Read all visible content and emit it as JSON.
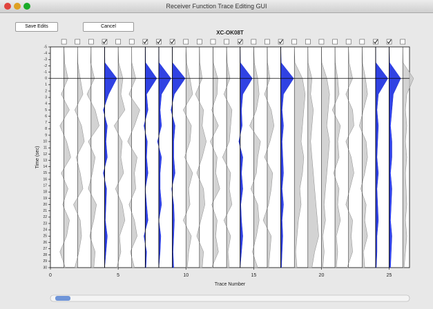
{
  "window": {
    "title": "Receiver Function Trace Editing GUI"
  },
  "buttons": [
    "Save Edits",
    "Cancel"
  ],
  "chart_data": {
    "type": "trace-section",
    "title": "XC-OK08T",
    "x_label": "Trace Number",
    "y_label": "Time (sec)",
    "xlim": [
      0,
      26.5
    ],
    "xticks": [
      0,
      5,
      10,
      15,
      20,
      25
    ],
    "ylim": [
      -5,
      30
    ],
    "yticks": [
      -5,
      -4,
      -3,
      -2,
      -1,
      0,
      1,
      2,
      3,
      4,
      5,
      6,
      7,
      8,
      9,
      10,
      11,
      12,
      13,
      14,
      15,
      16,
      17,
      18,
      19,
      20,
      21,
      22,
      23,
      24,
      25,
      26,
      27,
      28,
      29,
      30
    ],
    "checked_color": "#1a2ee0",
    "unchecked_color": "#c8c8c8",
    "times": [
      -5,
      -2.5,
      0,
      2.5,
      5,
      7.5,
      10,
      12.5,
      15,
      17.5,
      20,
      22.5,
      25,
      27.5,
      30
    ],
    "traces": [
      {
        "x": 1,
        "checked": false,
        "values": [
          0,
          0.05,
          0.3,
          -0.2,
          0.4,
          -0.3,
          0.2,
          0.5,
          -0.2,
          0.3,
          -0.1,
          0.4,
          0.2,
          -0.3,
          0.1
        ]
      },
      {
        "x": 2,
        "checked": false,
        "values": [
          0,
          0.02,
          0.2,
          0.4,
          -0.2,
          0.3,
          0.5,
          -0.1,
          0.2,
          0.4,
          -0.3,
          0.2,
          0.3,
          0.1,
          -0.2
        ]
      },
      {
        "x": 3,
        "checked": false,
        "values": [
          0,
          -0.03,
          0.25,
          -0.3,
          0.3,
          0.6,
          -0.2,
          0.3,
          0.1,
          -0.2,
          0.4,
          0.2,
          -0.1,
          0.3,
          0.2
        ]
      },
      {
        "x": 4,
        "checked": true,
        "values": [
          0,
          0.02,
          0.9,
          0.3,
          -0.1,
          0.2,
          0.1,
          0.2,
          -0.1,
          0.15,
          0.1,
          0.05,
          0.2,
          0.1,
          0
        ]
      },
      {
        "x": 5,
        "checked": false,
        "values": [
          0,
          0.04,
          0.35,
          0.2,
          0.5,
          -0.3,
          0.3,
          0.2,
          0.4,
          -0.2,
          0.3,
          0.5,
          0.1,
          0.2,
          -0.1
        ]
      },
      {
        "x": 6,
        "checked": false,
        "values": [
          0,
          0.01,
          0.3,
          -0.2,
          0.6,
          0.2,
          -0.3,
          0.4,
          0.2,
          0.3,
          -0.2,
          0.2,
          0.4,
          -0.1,
          0.2
        ]
      },
      {
        "x": 7,
        "checked": true,
        "values": [
          0,
          0.03,
          0.85,
          0.1,
          0.2,
          -0.1,
          0.15,
          0.1,
          0.2,
          0,
          0.1,
          0.2,
          -0.1,
          0.1,
          0.05
        ]
      },
      {
        "x": 8,
        "checked": true,
        "values": [
          0,
          0.02,
          0.9,
          0.2,
          0.1,
          0.2,
          -0.1,
          0.2,
          0.1,
          0.1,
          0.2,
          0,
          0.15,
          0.1,
          0
        ]
      },
      {
        "x": 9,
        "checked": true,
        "values": [
          0,
          0.01,
          0.95,
          0.15,
          -0.1,
          0.2,
          0.1,
          0.1,
          0.2,
          -0.05,
          0.1,
          0.15,
          0.1,
          0.05,
          0.1
        ]
      },
      {
        "x": 10,
        "checked": false,
        "values": [
          0,
          0.05,
          0.3,
          0.5,
          -0.2,
          0.4,
          0.3,
          -0.1,
          0.5,
          0.2,
          0.3,
          -0.2,
          0.4,
          0.2,
          0.1
        ]
      },
      {
        "x": 11,
        "checked": false,
        "values": [
          0,
          0.03,
          0.2,
          -0.3,
          0.3,
          0.2,
          0.5,
          0.2,
          -0.2,
          0.3,
          0.4,
          0.1,
          -0.2,
          0.3,
          0.2
        ]
      },
      {
        "x": 12,
        "checked": false,
        "values": [
          0,
          0.02,
          0.35,
          0.3,
          -0.1,
          0.4,
          -0.2,
          0.3,
          0.2,
          0.5,
          -0.1,
          0.3,
          0.2,
          0.4,
          -0.1
        ]
      },
      {
        "x": 13,
        "checked": false,
        "values": [
          0,
          0.04,
          0.25,
          -0.2,
          0.4,
          0.3,
          0.2,
          -0.3,
          0.3,
          0.2,
          0.4,
          -0.2,
          0.3,
          0.1,
          0.2
        ]
      },
      {
        "x": 14,
        "checked": true,
        "values": [
          0,
          0.02,
          0.9,
          0.2,
          0.1,
          0.15,
          -0.1,
          0.2,
          0.1,
          0.2,
          0.05,
          0.1,
          0.2,
          0.1,
          0
        ]
      },
      {
        "x": 15,
        "checked": false,
        "values": [
          0,
          0.05,
          0.3,
          0.4,
          0.2,
          -0.3,
          0.5,
          0.3,
          0.2,
          -0.2,
          0.3,
          0.4,
          0.2,
          -0.1,
          0.3
        ]
      },
      {
        "x": 16,
        "checked": false,
        "values": [
          0,
          0.02,
          0.2,
          -0.2,
          0.3,
          0.5,
          0.2,
          -0.2,
          0.4,
          0.3,
          0.1,
          -0.3,
          0.3,
          0.2,
          0.1
        ]
      },
      {
        "x": 17,
        "checked": true,
        "values": [
          0,
          0.03,
          0.95,
          0.2,
          0.1,
          0.2,
          0.1,
          0.15,
          0.2,
          0.1,
          0.2,
          0.1,
          0.15,
          0.1,
          0.05
        ]
      },
      {
        "x": 18,
        "checked": false,
        "values": [
          0,
          0.04,
          0.6,
          0.8,
          0.7,
          0.6,
          0.5,
          0.7,
          0.6,
          0.4,
          0.5,
          0.3,
          0.2,
          0.1,
          0.2
        ]
      },
      {
        "x": 19,
        "checked": false,
        "values": [
          0,
          0.02,
          0.3,
          0.2,
          0.4,
          0.3,
          0.2,
          0.3,
          0.4,
          0.5,
          0.6,
          0.7,
          0.8,
          0.5,
          0.3
        ]
      },
      {
        "x": 20,
        "checked": false,
        "values": [
          0,
          0.03,
          0.4,
          0.6,
          0.5,
          0.4,
          0.6,
          0.5,
          0.4,
          0.3,
          0.2,
          0.3,
          0.1,
          0.2,
          0.1
        ]
      },
      {
        "x": 21,
        "checked": false,
        "values": [
          0,
          0.02,
          0.2,
          0.3,
          -0.2,
          0.4,
          0.2,
          0.3,
          -0.1,
          0.3,
          0.2,
          0.4,
          0.1,
          0.2,
          0.1
        ]
      },
      {
        "x": 22,
        "checked": false,
        "values": [
          0,
          0.05,
          0.3,
          -0.2,
          0.3,
          0.4,
          -0.2,
          0.2,
          0.4,
          0.1,
          -0.2,
          0.3,
          0.2,
          0.3,
          -0.1
        ]
      },
      {
        "x": 23,
        "checked": false,
        "values": [
          0,
          0.03,
          0.25,
          0.4,
          0.1,
          -0.2,
          0.3,
          0.4,
          0.2,
          -0.1,
          0.3,
          0.2,
          0.4,
          0.1,
          0.2
        ]
      },
      {
        "x": 24,
        "checked": true,
        "values": [
          0,
          0.02,
          0.9,
          0.2,
          0.1,
          0.2,
          0.15,
          0.1,
          0.2,
          0.1,
          0.15,
          0.2,
          0.1,
          0.1,
          0.05
        ]
      },
      {
        "x": 25,
        "checked": true,
        "values": [
          0,
          0.03,
          0.85,
          0.3,
          0.2,
          0.1,
          0.2,
          0.2,
          0.1,
          0.2,
          0.15,
          0.1,
          0.2,
          0.15,
          0.1
        ]
      },
      {
        "x": 26,
        "checked": false,
        "values": [
          0,
          0.02,
          0.8,
          0.3,
          0.2,
          0.3,
          0.2,
          0.3,
          0.2,
          0.25,
          0.3,
          0.2,
          0.3,
          0.2,
          0.1
        ]
      }
    ]
  }
}
